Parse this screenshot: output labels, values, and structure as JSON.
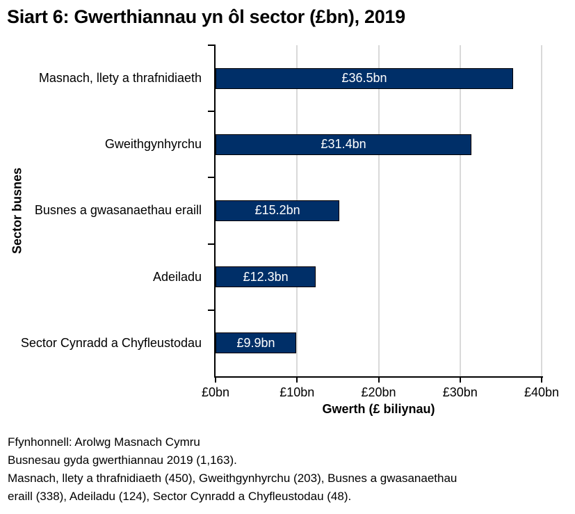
{
  "page": {
    "background": "#ffffff"
  },
  "chart_data": {
    "type": "bar",
    "orientation": "horizontal",
    "title": "Siart 6: Gwerthiannau yn ôl sector (£bn), 2019",
    "categories": [
      "Masnach, llety a thrafnidiaeth",
      "Gweithgynhyrchu",
      "Busnes a gwasanaethau eraill",
      "Adeiladu",
      "Sector Cynradd a Chyfleustodau"
    ],
    "values": [
      36.5,
      31.4,
      15.2,
      12.3,
      9.9
    ],
    "bar_labels": [
      "£36.5bn",
      "£31.4bn",
      "£15.2bn",
      "£12.3bn",
      "£9.9bn"
    ],
    "xlabel": "Gwerth (£ biliynau)",
    "ylabel": "Sector busnes",
    "xlim": [
      0,
      40
    ],
    "x_tick_labels": [
      "£0bn",
      "£10bn",
      "£20bn",
      "£30bn",
      "£40bn"
    ],
    "grid": "vertical-gridlines-at-x-ticks",
    "legend": "none",
    "colors": {
      "bar_fill": "#002f68",
      "bar_border": "#000000",
      "bar_label_text": "#ffffff",
      "gridline": "#d9d9d9",
      "axis": "#000000",
      "text": "#000000",
      "page_bg": "#ffffff"
    }
  },
  "footer": {
    "lines": [
      "Ffynhonnell: Arolwg Masnach Cymru",
      "Busnesau gyda gwerthiannau 2019 (1,163).",
      "Masnach, llety a thrafnidiaeth (450), Gweithgynhyrchu (203), Busnes a gwasanaethau",
      "eraill (338), Adeiladu (124), Sector Cynradd a Chyfleustodau (48)."
    ]
  }
}
